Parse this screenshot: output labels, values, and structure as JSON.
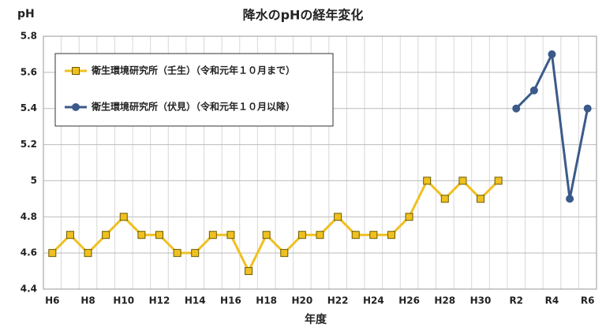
{
  "chart_data": {
    "type": "line",
    "title": "降水のpHの経年変化",
    "ylabel": "pH",
    "xlabel": "年度",
    "categories": [
      "H6",
      null,
      "H8",
      null,
      "H10",
      null,
      "H12",
      null,
      "H14",
      null,
      "H16",
      null,
      "H18",
      null,
      "H20",
      null,
      "H22",
      null,
      "H24",
      null,
      "H26",
      null,
      "H28",
      null,
      "H30",
      null,
      "R2",
      null,
      "R4",
      null,
      "R6"
    ],
    "series": [
      {
        "name": "衛生環境研究所（壬生）（令和元年１０月まで）",
        "color": "#f0c020",
        "marker": "square",
        "values": [
          4.6,
          4.7,
          4.6,
          4.7,
          4.8,
          4.7,
          4.7,
          4.6,
          4.6,
          4.7,
          4.7,
          4.5,
          4.7,
          4.6,
          4.7,
          4.7,
          4.8,
          4.7,
          4.7,
          4.7,
          4.8,
          5.0,
          4.9,
          5.0,
          4.9,
          5.0,
          null,
          null,
          null,
          null,
          null
        ]
      },
      {
        "name": "衛生環境研究所（伏見）（令和元年１０月以降）",
        "color": "#3b5a8a",
        "marker": "circle",
        "values": [
          null,
          null,
          null,
          null,
          null,
          null,
          null,
          null,
          null,
          null,
          null,
          null,
          null,
          null,
          null,
          null,
          null,
          null,
          null,
          null,
          null,
          null,
          null,
          null,
          null,
          null,
          5.4,
          5.5,
          5.7,
          4.9,
          5.4
        ]
      }
    ],
    "ylim": [
      4.4,
      5.8
    ],
    "yticks": [
      4.4,
      4.6,
      4.8,
      5,
      5.2,
      5.4,
      5.6,
      5.8
    ],
    "grid": true,
    "legend": "upper left"
  }
}
